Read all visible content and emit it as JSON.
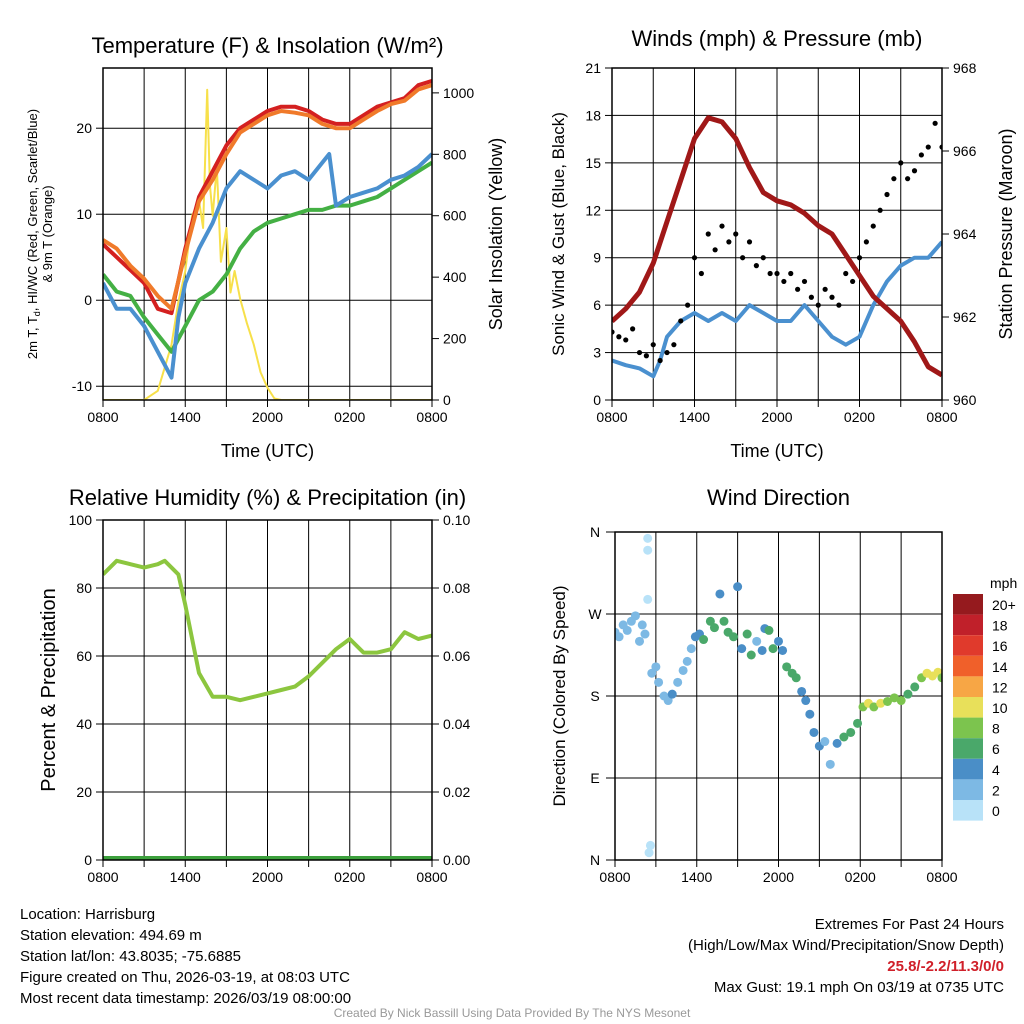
{
  "chart_data": [
    {
      "type": "line",
      "title": "Temperature (F) & Insolation (W/m²)",
      "xlabel": "Time (UTC)",
      "ylabel_parts": [
        "2m T, T",
        "d",
        ", HI/WC (Red, Green, Scarlet/Blue)"
      ],
      "ylabel_line2": "& 9m T (Orange)",
      "ylabel_right": "Solar Insolation (Yellow)",
      "x_tick_labels": [
        "0800",
        "1400",
        "2000",
        "0200",
        "0800"
      ],
      "xlim_hours": [
        0,
        24
      ],
      "ylim": [
        -11.6,
        27
      ],
      "y_ticks": [
        -10,
        0,
        10,
        20
      ],
      "ylim_right": [
        0,
        1081
      ],
      "y_ticks_right": [
        0,
        200,
        400,
        600,
        800,
        1000
      ],
      "grid": true,
      "series": [
        {
          "name": "Solar Insolation",
          "axis": "right",
          "color": "#f7e04a",
          "x": [
            0,
            1,
            2,
            3,
            4,
            5,
            5.5,
            6,
            6.5,
            7,
            7.3,
            7.6,
            7.8,
            8,
            8.3,
            8.6,
            9,
            9.3,
            9.6,
            10,
            10.5,
            11,
            11.5,
            12,
            12.5,
            13,
            14,
            16,
            18,
            20,
            22,
            24
          ],
          "values": [
            0,
            0,
            0,
            0,
            30,
            180,
            320,
            420,
            600,
            650,
            560,
            1010,
            700,
            600,
            760,
            450,
            560,
            350,
            420,
            330,
            250,
            180,
            90,
            40,
            5,
            0,
            0,
            0,
            0,
            0,
            0,
            0
          ]
        },
        {
          "name": "2m T",
          "axis": "left",
          "color": "#d42020",
          "x": [
            0,
            1,
            2,
            3,
            4,
            5,
            6,
            7,
            8,
            9,
            10,
            11,
            12,
            13,
            14,
            15,
            16,
            17,
            18,
            19,
            20,
            21,
            22,
            23,
            24
          ],
          "values": [
            6.5,
            5,
            3.5,
            2,
            -1,
            -1.5,
            6,
            12,
            15,
            18,
            20,
            21,
            22,
            22.5,
            22.5,
            22,
            21,
            20.5,
            20.5,
            21.5,
            22.5,
            23,
            23.5,
            25,
            25.5
          ]
        },
        {
          "name": "9m T",
          "axis": "left",
          "color": "#f07a2a",
          "x": [
            0,
            1,
            2,
            3,
            4,
            5,
            6,
            7,
            8,
            9,
            10,
            11,
            12,
            13,
            14,
            15,
            16,
            17,
            18,
            19,
            20,
            21,
            22,
            23,
            24
          ],
          "values": [
            7,
            6,
            4,
            2.5,
            0.5,
            -1,
            5.5,
            11.5,
            14,
            17,
            19.5,
            20.5,
            21.5,
            22,
            21.8,
            21.5,
            20.5,
            20,
            20,
            21,
            22,
            22.8,
            23.2,
            24.5,
            25
          ]
        },
        {
          "name": "2m Td",
          "axis": "left",
          "color": "#44b044",
          "x": [
            0,
            1,
            2,
            3,
            4,
            5,
            6,
            7,
            8,
            9,
            10,
            11,
            12,
            13,
            14,
            15,
            16,
            17,
            18,
            19,
            20,
            21,
            22,
            23,
            24
          ],
          "values": [
            3,
            1,
            0.5,
            -2,
            -4,
            -6,
            -3,
            0,
            1,
            3,
            6,
            8,
            9,
            9.5,
            10,
            10.5,
            10.5,
            11,
            11,
            11.5,
            12,
            13,
            14,
            15,
            16
          ]
        },
        {
          "name": "HI/WC",
          "axis": "left",
          "color": "#4a90cf",
          "x": [
            0,
            1,
            2,
            3,
            4,
            5,
            5.5,
            6,
            7,
            8,
            9,
            10,
            11,
            12,
            13,
            14,
            15,
            16,
            16.5,
            17,
            18,
            19,
            20,
            21,
            22,
            23,
            24
          ],
          "values": [
            2,
            -1,
            -1,
            -3,
            -6,
            -9,
            -2,
            2,
            6,
            9,
            13,
            15,
            14,
            13,
            14.5,
            15,
            14,
            16,
            17,
            11,
            12,
            12.5,
            13,
            14,
            14.5,
            15.5,
            17
          ]
        }
      ]
    },
    {
      "type": "line",
      "title": "Winds (mph) & Pressure (mb)",
      "xlabel": "Time (UTC)",
      "ylabel": "Sonic Wind & Gust (Blue, Black)",
      "ylabel_right": "Station Pressure (Maroon)",
      "x_tick_labels": [
        "0800",
        "1400",
        "2000",
        "0200",
        "0800"
      ],
      "xlim_hours": [
        0,
        24
      ],
      "ylim": [
        0,
        21
      ],
      "y_ticks": [
        0,
        3,
        6,
        9,
        12,
        15,
        18,
        21
      ],
      "ylim_right": [
        960,
        968
      ],
      "y_ticks_right": [
        960,
        962,
        964,
        966,
        968
      ],
      "grid": true,
      "series": [
        {
          "name": "Sonic Wind",
          "axis": "left",
          "color": "#4a90cf",
          "x": [
            0,
            1,
            2,
            3,
            3.5,
            4,
            5,
            6,
            7,
            8,
            9,
            10,
            11,
            12,
            13,
            14,
            15,
            16,
            17,
            18,
            19,
            20,
            21,
            22,
            23,
            24
          ],
          "values": [
            2.5,
            2.2,
            2,
            1.5,
            2.5,
            4,
            5,
            5.5,
            5,
            5.5,
            5,
            6,
            5.5,
            5,
            5,
            6,
            5,
            4,
            3.5,
            4,
            6,
            7.5,
            8.5,
            9,
            9,
            10
          ]
        },
        {
          "name": "Station Pressure",
          "axis": "right",
          "color": "#a01818",
          "x": [
            0,
            1,
            2,
            3,
            4,
            5,
            6,
            7,
            8,
            9,
            10,
            11,
            12,
            13,
            14,
            15,
            16,
            17,
            18,
            19,
            20,
            21,
            22,
            23,
            24
          ],
          "values": [
            961.9,
            962.2,
            962.6,
            963.3,
            964.3,
            965.3,
            966.3,
            966.8,
            966.7,
            966.3,
            965.6,
            965,
            964.8,
            964.7,
            964.5,
            964.2,
            964,
            963.5,
            963,
            962.5,
            962.2,
            961.9,
            961.4,
            960.8,
            960.6
          ]
        },
        {
          "name": "Gust",
          "axis": "left",
          "color": "#000000",
          "mode": "points",
          "x": [
            0,
            0.5,
            1,
            1.5,
            2,
            2.5,
            3,
            3.5,
            4,
            4.5,
            5,
            5.5,
            6,
            6.5,
            7,
            7.5,
            8,
            8.5,
            9,
            9.5,
            10,
            10.5,
            11,
            11.5,
            12,
            12.5,
            13,
            13.5,
            14,
            14.5,
            15,
            15.5,
            16,
            16.5,
            17,
            17.5,
            18,
            18.5,
            19,
            19.5,
            20,
            20.5,
            21,
            21.5,
            22,
            22.5,
            23,
            23.5,
            24
          ],
          "values": [
            4.3,
            4,
            3.8,
            4.5,
            3,
            2.8,
            3.5,
            2.5,
            3,
            3.5,
            5,
            6,
            9,
            8,
            10.5,
            9.5,
            11,
            10,
            10.5,
            9,
            10,
            8.5,
            9,
            8,
            8,
            7.5,
            8,
            7,
            7.5,
            6.5,
            6,
            7,
            6.5,
            6,
            8,
            7.5,
            9,
            10,
            11,
            12,
            13,
            14,
            15,
            14,
            14.5,
            15.5,
            16,
            17.5,
            16
          ]
        }
      ]
    },
    {
      "type": "line",
      "title": "Relative Humidity (%) & Precipitation (in)",
      "ylabel": "Percent & Precipitation",
      "x_tick_labels": [
        "0800",
        "1400",
        "2000",
        "0200",
        "0800"
      ],
      "xlim_hours": [
        0,
        24
      ],
      "ylim": [
        0,
        100
      ],
      "y_ticks": [
        0,
        20,
        40,
        60,
        80,
        100
      ],
      "ylim_right": [
        0,
        0.1
      ],
      "y_ticks_right": [
        "0.00",
        "0.02",
        "0.04",
        "0.06",
        "0.08",
        "0.10"
      ],
      "grid": true,
      "series": [
        {
          "name": "Relative Humidity",
          "axis": "left",
          "color": "#8cc63f",
          "x": [
            0,
            1,
            2,
            3,
            4,
            4.5,
            5,
            5.5,
            6,
            7,
            8,
            9,
            10,
            11,
            12,
            13,
            14,
            15,
            16,
            17,
            18,
            19,
            20,
            21,
            22,
            23,
            24
          ],
          "values": [
            84,
            88,
            87,
            86,
            87,
            88,
            86,
            84,
            75,
            55,
            48,
            48,
            47,
            48,
            49,
            50,
            51,
            54,
            58,
            62,
            65,
            61,
            61,
            62,
            67,
            65,
            66
          ]
        },
        {
          "name": "Precipitation",
          "axis": "right",
          "color": "#3ca03c",
          "x": [
            0,
            24
          ],
          "values": [
            0,
            0
          ]
        }
      ]
    },
    {
      "type": "scatter",
      "title": "Wind Direction",
      "ylabel": "Direction (Colored By Speed)",
      "x_tick_labels": [
        "0800",
        "1400",
        "2000",
        "0200",
        "0800"
      ],
      "xlim_hours": [
        0,
        24
      ],
      "ylim": [
        0,
        360
      ],
      "y_tick_labels": [
        "N",
        "E",
        "S",
        "W",
        "N"
      ],
      "legend": {
        "title": "mph",
        "labels": [
          "20+",
          "18",
          "16",
          "14",
          "12",
          "10",
          "8",
          "6",
          "4",
          "2",
          "0"
        ],
        "colors": [
          "#951a1e",
          "#c0202a",
          "#e03a2c",
          "#f0602a",
          "#f7a645",
          "#e8e05a",
          "#7cc44e",
          "#4aa86a",
          "#4a8ec7",
          "#7db9e4",
          "#b8e2f8"
        ],
        "placement": "right"
      },
      "points": [
        [
          0,
          250,
          2.5
        ],
        [
          0.3,
          245,
          2.5
        ],
        [
          0.6,
          258,
          2.5
        ],
        [
          0.9,
          252,
          3
        ],
        [
          1.2,
          262,
          2.5
        ],
        [
          1.5,
          268,
          3
        ],
        [
          1.8,
          240,
          2.5
        ],
        [
          2,
          258,
          3
        ],
        [
          2.2,
          248,
          2.5
        ],
        [
          2.4,
          286,
          1
        ],
        [
          2.4,
          340,
          0.5
        ],
        [
          2.4,
          353,
          0.5
        ],
        [
          2.5,
          8,
          0.5
        ],
        [
          2.6,
          16,
          0.5
        ],
        [
          2.7,
          205,
          3
        ],
        [
          3,
          212,
          3
        ],
        [
          3.2,
          195,
          3
        ],
        [
          3.6,
          180,
          3
        ],
        [
          3.9,
          175,
          3
        ],
        [
          4.2,
          182,
          4
        ],
        [
          4.6,
          195,
          3
        ],
        [
          5,
          208,
          3
        ],
        [
          5.3,
          218,
          3
        ],
        [
          5.6,
          232,
          3.5
        ],
        [
          5.9,
          245,
          5
        ],
        [
          6.2,
          248,
          5
        ],
        [
          6.5,
          242,
          7
        ],
        [
          7,
          262,
          6
        ],
        [
          7.3,
          255,
          7
        ],
        [
          7.7,
          292,
          4
        ],
        [
          8,
          262,
          7
        ],
        [
          8.3,
          250,
          6
        ],
        [
          8.7,
          245,
          7
        ],
        [
          9,
          300,
          5
        ],
        [
          9.3,
          232,
          5
        ],
        [
          9.7,
          248,
          7
        ],
        [
          10,
          225,
          6
        ],
        [
          10.4,
          240,
          3
        ],
        [
          10.8,
          230,
          4
        ],
        [
          11,
          254,
          4
        ],
        [
          11.3,
          252,
          6
        ],
        [
          11.6,
          232,
          6
        ],
        [
          12,
          240,
          5
        ],
        [
          12.3,
          230,
          4
        ],
        [
          12.6,
          212,
          7
        ],
        [
          13,
          205,
          7
        ],
        [
          13.3,
          200,
          6
        ],
        [
          13.7,
          185,
          5
        ],
        [
          14,
          175,
          4
        ],
        [
          14.3,
          160,
          4
        ],
        [
          14.6,
          140,
          4
        ],
        [
          15,
          125,
          4
        ],
        [
          15.4,
          130,
          3
        ],
        [
          15.8,
          105,
          2.5
        ],
        [
          16.3,
          128,
          4
        ],
        [
          16.8,
          135,
          6
        ],
        [
          17.3,
          140,
          7
        ],
        [
          17.8,
          150,
          7
        ],
        [
          18.2,
          168,
          8
        ],
        [
          18.6,
          172,
          10
        ],
        [
          19,
          168,
          9
        ],
        [
          19.5,
          172,
          10
        ],
        [
          20,
          174,
          8
        ],
        [
          20.5,
          178,
          8
        ],
        [
          21,
          175,
          8
        ],
        [
          21.5,
          182,
          7
        ],
        [
          22,
          190,
          7
        ],
        [
          22.5,
          200,
          8
        ],
        [
          22.9,
          205,
          10
        ],
        [
          23.3,
          202,
          10
        ],
        [
          23.7,
          206,
          10
        ],
        [
          24,
          200,
          8
        ]
      ]
    }
  ],
  "footer": {
    "location": "Location: Harrisburg",
    "elevation": "Station elevation: 494.69 m",
    "latlon": "Station lat/lon: 43.8035; -75.6885",
    "created": "Figure created on Thu, 2026-03-19, at 08:03 UTC",
    "recent": "Most recent data timestamp: 2026/03/19 08:00:00",
    "extremes_title": "Extremes For Past 24 Hours",
    "extremes_fields": "(High/Low/Max Wind/Precipitation/Snow Depth)",
    "extremes_values": "25.8/-2.2/11.3/0/0",
    "max_gust": "Max Gust: 19.1 mph On 03/19 at 0735 UTC",
    "credit": "Created By Nick Bassill Using Data Provided By The NYS Mesonet"
  }
}
